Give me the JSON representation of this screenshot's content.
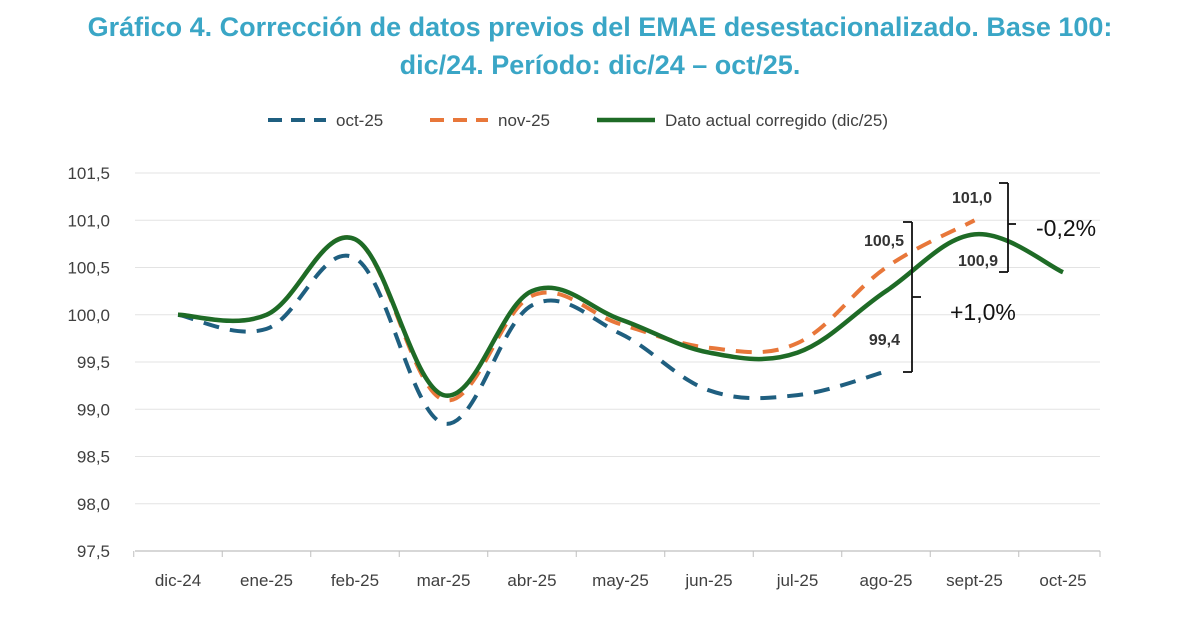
{
  "title": {
    "line1": "Gráfico 4. Corrección de datos previos del EMAE desestacionalizado. Base 100:",
    "line2": "dic/24. Período: dic/24 – oct/25."
  },
  "colors": {
    "title": "#3aa6c6",
    "oct25": "#1f5f80",
    "nov25": "#e8773a",
    "corrected": "#1e6b26",
    "grid": "#e3e3e3",
    "axis": "#bfbfbf",
    "text": "#404040"
  },
  "chart_data": {
    "type": "line",
    "title": "Gráfico 4. Corrección de datos previos del EMAE desestacionalizado. Base 100: dic/24. Período: dic/24 – oct/25.",
    "xlabel": "",
    "ylabel": "",
    "categories": [
      "dic-24",
      "ene-25",
      "feb-25",
      "mar-25",
      "abr-25",
      "may-25",
      "jun-25",
      "jul-25",
      "ago-25",
      "sept-25",
      "oct-25"
    ],
    "ylim": [
      97.5,
      101.5
    ],
    "yticks": [
      97.5,
      98.0,
      98.5,
      99.0,
      99.5,
      100.0,
      100.5,
      101.0,
      101.5
    ],
    "ytick_labels": [
      "97,5",
      "98,0",
      "98,5",
      "99,0",
      "99,5",
      "100,0",
      "100,5",
      "101,0",
      "101,5"
    ],
    "grid": true,
    "legend_position": "top-center",
    "series": [
      {
        "name": "oct-25",
        "style": "dashed",
        "values": [
          100.0,
          99.85,
          100.6,
          98.85,
          100.1,
          99.8,
          99.2,
          99.15,
          99.4,
          null,
          null
        ]
      },
      {
        "name": "nov-25",
        "style": "dashed",
        "values": [
          100.0,
          100.0,
          100.8,
          99.1,
          100.2,
          99.9,
          99.65,
          99.7,
          100.5,
          101.0,
          null
        ]
      },
      {
        "name": "Dato actual corregido (dic/25)",
        "style": "solid",
        "values": [
          100.0,
          100.0,
          100.8,
          99.15,
          100.25,
          99.95,
          99.6,
          99.6,
          100.25,
          100.85,
          100.45
        ]
      }
    ],
    "annotations": {
      "point_labels": [
        {
          "text": "101,0",
          "category": "sept-25",
          "value": 101.0
        },
        {
          "text": "100,5",
          "category": "ago-25",
          "value": 100.5
        },
        {
          "text": "100,9",
          "category": "sept-25",
          "value": 100.9
        },
        {
          "text": "99,4",
          "category": "ago-25",
          "value": 99.4
        }
      ],
      "differences": [
        {
          "text": "-0,2%",
          "from": 101.0,
          "to": 100.9
        },
        {
          "text": "+1,0%",
          "from": 99.4,
          "to": 100.5
        }
      ]
    }
  }
}
